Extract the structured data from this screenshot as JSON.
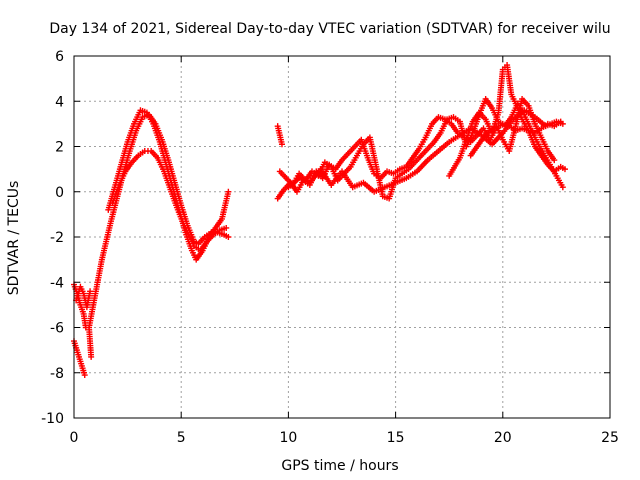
{
  "chart_data": {
    "type": "scatter",
    "title": "Day 134 of 2021, Sidereal Day-to-day VTEC variation (SDTVAR) for receiver wilu",
    "xlabel": "GPS time / hours",
    "ylabel": "SDTVAR / TECUs",
    "xlim": [
      0,
      25
    ],
    "ylim": [
      -10,
      6
    ],
    "xticks": [
      0,
      5,
      10,
      15,
      20,
      25
    ],
    "yticks": [
      -10,
      -8,
      -6,
      -4,
      -2,
      0,
      2,
      4,
      6
    ],
    "xtick_labels": [
      "0",
      "5",
      "10",
      "15",
      "20",
      "25"
    ],
    "ytick_labels": [
      "-10",
      "-8",
      "-6",
      "-4",
      "-2",
      "0",
      "2",
      "4",
      "6"
    ],
    "grid": true,
    "marker": "+",
    "color": "#ff0000",
    "series": [
      {
        "name": "track-1",
        "x": [
          0.0,
          0.2,
          0.4,
          0.5
        ],
        "y": [
          -6.6,
          -7.2,
          -7.8,
          -8.1
        ]
      },
      {
        "name": "track-2",
        "x": [
          0.0,
          0.15,
          0.3,
          0.45,
          0.55
        ],
        "y": [
          -4.1,
          -4.5,
          -5.0,
          -5.4,
          -6.0
        ]
      },
      {
        "name": "track-3",
        "x": [
          0.1,
          0.3,
          0.45,
          0.6,
          0.75
        ],
        "y": [
          -4.8,
          -4.2,
          -4.5,
          -5.1,
          -4.4
        ]
      },
      {
        "name": "track-4",
        "x": [
          0.8,
          0.7,
          0.9,
          1.1,
          1.3,
          1.5,
          1.7,
          2.0,
          2.3,
          2.6,
          2.9,
          3.2,
          3.5,
          3.8,
          4.1,
          4.4,
          4.7,
          5.0,
          5.3,
          5.6,
          5.8,
          6.1,
          6.4,
          6.7,
          7.0,
          7.2
        ],
        "y": [
          -7.3,
          -6.0,
          -5.0,
          -4.0,
          -3.0,
          -2.2,
          -1.4,
          -0.3,
          0.8,
          1.8,
          2.7,
          3.3,
          3.4,
          3.0,
          2.3,
          1.4,
          0.4,
          -0.6,
          -1.5,
          -2.2,
          -2.3,
          -2.0,
          -1.8,
          -1.8,
          -1.9,
          -2.0
        ]
      },
      {
        "name": "track-5",
        "x": [
          1.6,
          1.9,
          2.2,
          2.5,
          2.8,
          3.1,
          3.4,
          3.7,
          4.0,
          4.3,
          4.6,
          4.9,
          5.2,
          5.5,
          5.7,
          6.0,
          6.3,
          6.6,
          6.9,
          7.2
        ],
        "y": [
          -0.8,
          0.2,
          1.2,
          2.2,
          3.0,
          3.6,
          3.5,
          3.0,
          2.2,
          1.2,
          0.2,
          -0.8,
          -1.8,
          -2.6,
          -3.0,
          -2.6,
          -2.0,
          -1.6,
          -1.2,
          0.0
        ]
      },
      {
        "name": "track-6",
        "x": [
          1.8,
          2.1,
          2.4,
          2.7,
          3.0,
          3.3,
          3.6,
          3.9,
          4.2,
          4.5,
          4.8,
          5.1,
          5.4,
          5.6,
          5.9,
          6.2,
          6.5,
          6.8,
          7.1
        ],
        "y": [
          -0.5,
          0.3,
          0.9,
          1.3,
          1.6,
          1.8,
          1.8,
          1.5,
          0.9,
          0.1,
          -0.7,
          -1.4,
          -2.0,
          -2.4,
          -2.6,
          -2.2,
          -1.9,
          -1.7,
          -1.6
        ]
      },
      {
        "name": "track-7",
        "x": [
          9.5,
          9.6,
          9.7
        ],
        "y": [
          2.9,
          2.5,
          2.1
        ]
      },
      {
        "name": "track-8",
        "x": [
          9.5,
          9.8,
          10.1,
          10.4,
          10.7,
          11.0,
          11.3,
          11.6,
          11.9,
          12.2,
          12.5,
          12.8,
          13.1,
          13.4,
          13.7,
          14.0,
          14.3,
          14.6,
          14.9,
          15.2,
          15.5,
          15.8,
          16.1,
          16.4,
          16.7,
          17.0,
          17.3,
          17.6,
          17.9,
          18.2,
          18.5,
          18.8,
          19.1,
          19.4,
          19.7,
          20.0,
          20.3,
          20.6,
          20.9,
          21.2,
          21.5,
          21.8,
          22.1,
          22.4,
          22.7
        ],
        "y": [
          -0.3,
          0.1,
          0.4,
          0.0,
          0.5,
          0.3,
          0.9,
          0.6,
          1.2,
          1.0,
          1.4,
          1.7,
          2.0,
          2.3,
          1.5,
          0.8,
          0.6,
          0.9,
          0.8,
          1.0,
          1.1,
          1.5,
          1.9,
          2.4,
          3.0,
          3.3,
          3.2,
          3.0,
          2.6,
          2.4,
          2.2,
          2.5,
          2.8,
          2.3,
          2.8,
          3.0,
          2.9,
          2.7,
          2.8,
          2.7,
          2.6,
          2.8,
          3.0,
          2.9,
          3.1
        ]
      },
      {
        "name": "track-9",
        "x": [
          9.6,
          9.9,
          10.2,
          10.5,
          10.8,
          11.1,
          11.4,
          11.7,
          12.0,
          12.3,
          12.6,
          12.9,
          13.2,
          13.5,
          13.8,
          14.1,
          14.4,
          14.7,
          15.0,
          15.3,
          15.6,
          15.9,
          16.2,
          16.5,
          16.8,
          17.1,
          17.4,
          17.7,
          18.0,
          18.3,
          18.6,
          18.9,
          19.2,
          19.5,
          19.8,
          20.1,
          20.4,
          20.7,
          21.0,
          21.3,
          21.6,
          21.9,
          22.2,
          22.5,
          22.8
        ],
        "y": [
          0.9,
          0.6,
          0.3,
          0.8,
          0.5,
          0.9,
          0.7,
          1.3,
          1.1,
          0.5,
          0.8,
          1.1,
          1.6,
          2.1,
          2.4,
          1.1,
          -0.2,
          -0.3,
          0.6,
          0.8,
          1.0,
          1.3,
          1.6,
          1.9,
          2.2,
          2.6,
          3.2,
          3.3,
          3.1,
          2.0,
          2.6,
          3.4,
          4.1,
          3.7,
          3.1,
          2.9,
          3.3,
          3.9,
          3.4,
          2.8,
          2.2,
          1.7,
          1.2,
          0.7,
          0.2
        ]
      },
      {
        "name": "track-10",
        "x": [
          10.0,
          10.5,
          11.0,
          11.5,
          12.0,
          12.5,
          13.0,
          13.5,
          14.0,
          14.5,
          15.0,
          15.5,
          16.0,
          16.5,
          17.0,
          17.5,
          18.0,
          18.5,
          19.0,
          19.5,
          20.0,
          20.5,
          21.0,
          21.5,
          22.0,
          22.5,
          22.8
        ],
        "y": [
          0.2,
          0.6,
          0.4,
          1.0,
          0.3,
          0.9,
          0.2,
          0.4,
          0.0,
          0.2,
          0.4,
          0.6,
          0.9,
          1.4,
          1.8,
          2.2,
          2.5,
          2.8,
          2.5,
          2.1,
          2.6,
          3.2,
          3.6,
          3.3,
          2.9,
          3.1,
          3.0
        ]
      },
      {
        "name": "track-11",
        "x": [
          17.5,
          18.0,
          18.3,
          18.6,
          18.9,
          19.2,
          19.5,
          19.8,
          20.0,
          20.2,
          20.4,
          20.6,
          20.9,
          21.2,
          21.5,
          21.8,
          22.1,
          22.4,
          22.7,
          22.9
        ],
        "y": [
          0.7,
          1.5,
          2.3,
          3.1,
          3.5,
          3.2,
          2.6,
          3.5,
          5.4,
          5.6,
          4.3,
          3.9,
          3.2,
          2.7,
          2.0,
          1.6,
          1.2,
          0.9,
          1.1,
          1.0
        ]
      },
      {
        "name": "track-12",
        "x": [
          18.5,
          18.8,
          19.1,
          19.4,
          19.7,
          20.0,
          20.3,
          20.6,
          20.9,
          21.2,
          21.5,
          21.8,
          22.1,
          22.4
        ],
        "y": [
          1.6,
          2.0,
          2.4,
          2.7,
          2.9,
          2.3,
          1.8,
          2.9,
          4.1,
          3.8,
          3.0,
          2.4,
          1.8,
          1.4
        ]
      }
    ]
  }
}
